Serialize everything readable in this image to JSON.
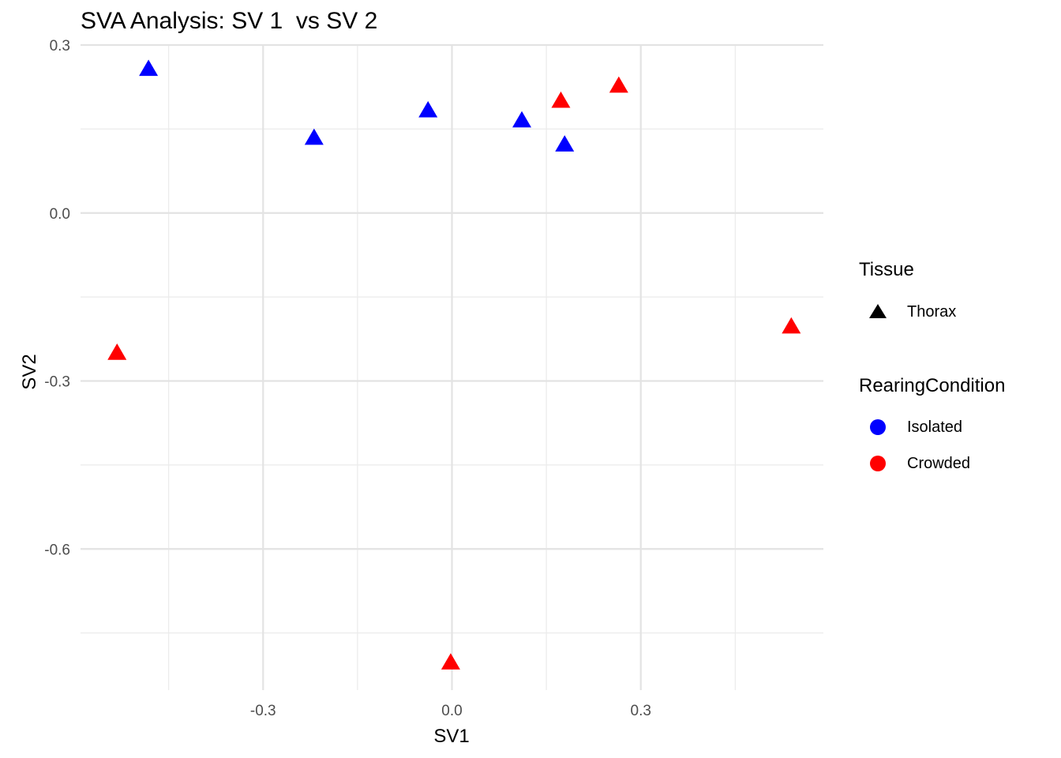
{
  "chart_data": {
    "type": "scatter",
    "title": "SVA Analysis: SV 1  vs SV 2",
    "xlabel": "SV1",
    "ylabel": "SV2",
    "xlim": [
      -0.59,
      0.59
    ],
    "ylim": [
      -0.852,
      0.3
    ],
    "x_ticks": [
      -0.3,
      0.0,
      0.3
    ],
    "x_tick_labels": [
      "-0.3",
      "0.0",
      "0.3"
    ],
    "y_ticks": [
      0.3,
      0.0,
      -0.3,
      -0.6
    ],
    "y_tick_labels": [
      "0.3",
      "0.0",
      "-0.3",
      "-0.6"
    ],
    "grid": true,
    "legend_position": "right",
    "series": [
      {
        "name": "Isolated",
        "color": "#0000ff",
        "shape": "triangle",
        "points": [
          {
            "x": -0.482,
            "y": 0.257
          },
          {
            "x": -0.219,
            "y": 0.134
          },
          {
            "x": -0.038,
            "y": 0.183
          },
          {
            "x": 0.111,
            "y": 0.165
          },
          {
            "x": 0.179,
            "y": 0.122
          }
        ]
      },
      {
        "name": "Crowded",
        "color": "#ff0000",
        "shape": "triangle",
        "points": [
          {
            "x": -0.532,
            "y": -0.25
          },
          {
            "x": 0.173,
            "y": 0.2
          },
          {
            "x": 0.265,
            "y": 0.227
          },
          {
            "x": 0.539,
            "y": -0.203
          },
          {
            "x": -0.002,
            "y": -0.803
          }
        ]
      }
    ]
  },
  "legend": {
    "tissue": {
      "title": "Tissue",
      "items": [
        {
          "label": "Thorax",
          "color": "#000000",
          "icon": "triangle-icon"
        }
      ]
    },
    "rearing": {
      "title": "RearingCondition",
      "items": [
        {
          "label": "Isolated",
          "color": "#0000ff",
          "icon": "circle-icon"
        },
        {
          "label": "Crowded",
          "color": "#ff0000",
          "icon": "circle-icon"
        }
      ]
    }
  }
}
